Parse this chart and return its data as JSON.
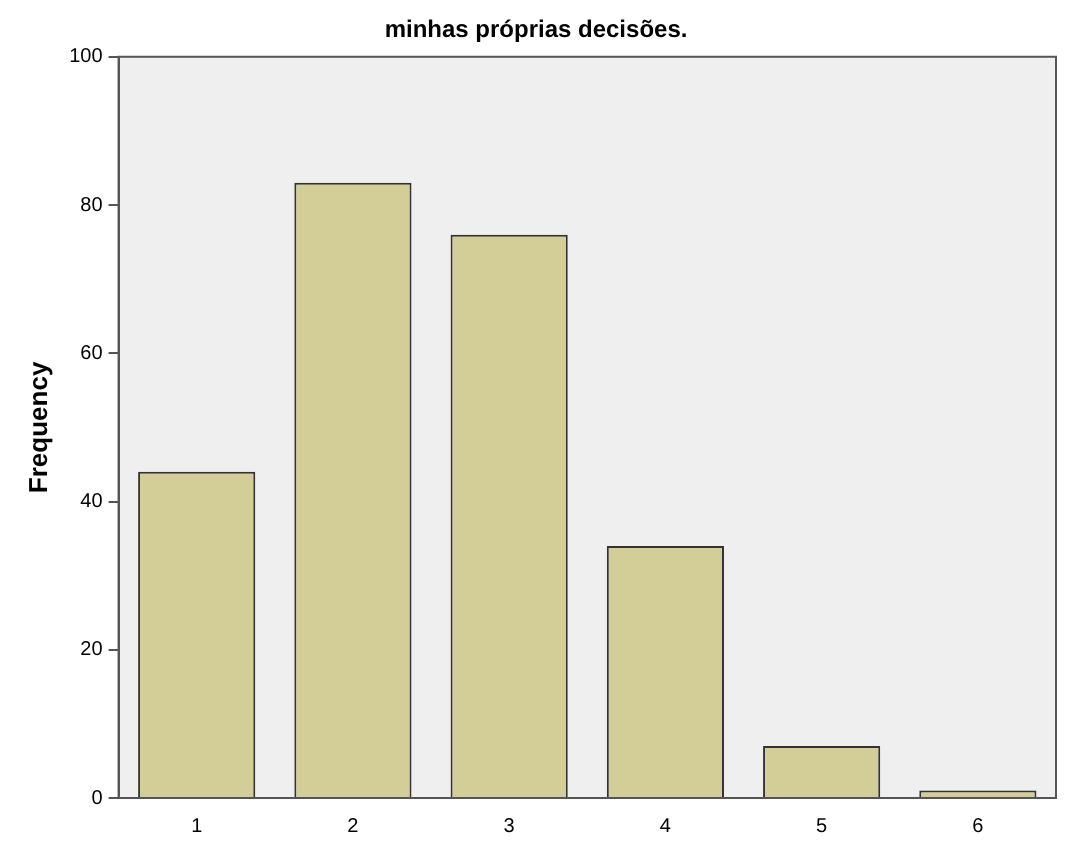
{
  "chart_data": {
    "type": "bar",
    "title": "minhas próprias decisões.",
    "ylabel": "Frequency",
    "categories": [
      "1",
      "2",
      "3",
      "4",
      "5",
      "6"
    ],
    "values": [
      44,
      83,
      76,
      34,
      7,
      1
    ],
    "color": "#d3ce98",
    "ylim": [
      0,
      100
    ],
    "yticks": [
      0,
      20,
      40,
      60,
      80,
      100
    ],
    "grid": false,
    "legend": false
  }
}
